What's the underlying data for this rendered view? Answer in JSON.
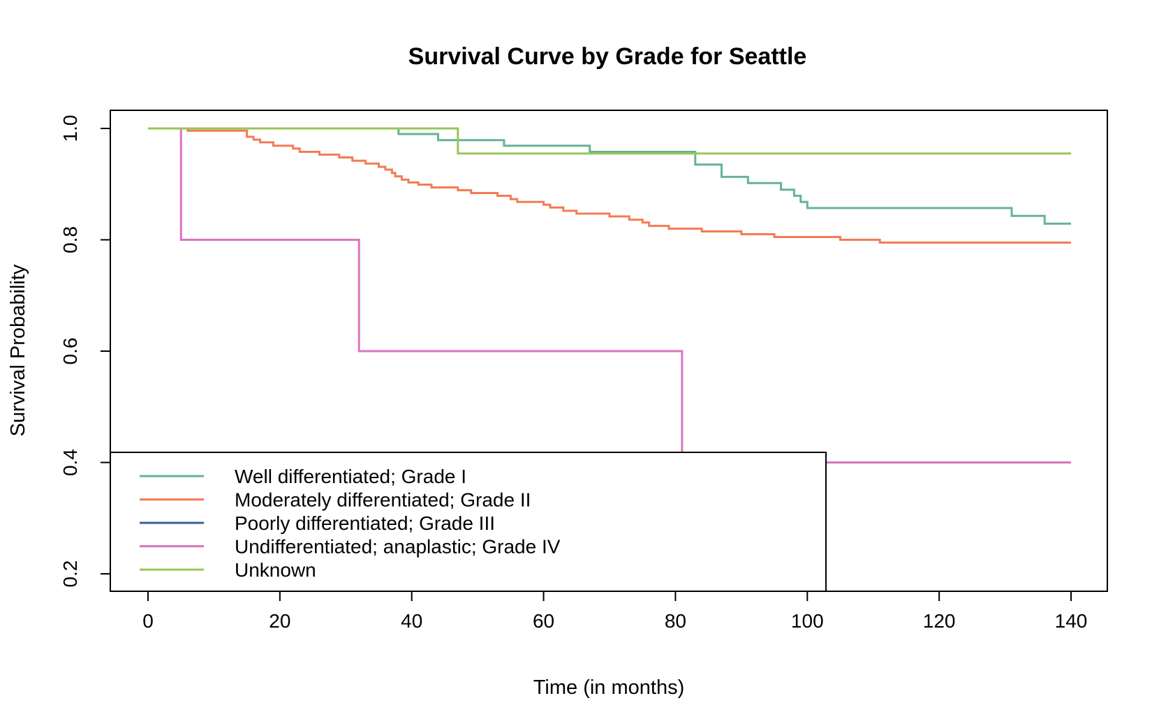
{
  "chart_data": {
    "type": "line",
    "step": true,
    "title": "Survival Curve by Grade for Seattle",
    "xlabel": "Time (in months)",
    "ylabel": "Survival Probability",
    "xlim": [
      0,
      140
    ],
    "ylim": [
      0.2,
      1.0
    ],
    "xticks": [
      0,
      20,
      40,
      60,
      80,
      100,
      120,
      140
    ],
    "xtick_labels": [
      "0",
      "20",
      "40",
      "60",
      "80",
      "100",
      "120",
      "140"
    ],
    "yticks": [
      0.2,
      0.4,
      0.6,
      0.8,
      1.0
    ],
    "ytick_labels": [
      "0.2",
      "0.4",
      "0.6",
      "0.8",
      "1.0"
    ],
    "grid": false,
    "legend_position": "bottom-left",
    "series": [
      {
        "name": "Well differentiated; Grade I",
        "color": "#66b493",
        "points": [
          [
            0,
            1.0
          ],
          [
            38,
            0.99
          ],
          [
            44,
            0.979
          ],
          [
            54,
            0.969
          ],
          [
            67,
            0.958
          ],
          [
            83,
            0.935
          ],
          [
            87,
            0.913
          ],
          [
            91,
            0.902
          ],
          [
            96,
            0.89
          ],
          [
            98,
            0.879
          ],
          [
            99,
            0.868
          ],
          [
            100,
            0.857
          ],
          [
            131,
            0.843
          ],
          [
            136,
            0.829
          ],
          [
            140,
            0.829
          ]
        ]
      },
      {
        "name": "Moderately differentiated; Grade II",
        "color": "#f37c54",
        "points": [
          [
            0,
            1.0
          ],
          [
            6,
            0.996
          ],
          [
            15,
            0.985
          ],
          [
            16,
            0.98
          ],
          [
            17,
            0.975
          ],
          [
            19,
            0.969
          ],
          [
            22,
            0.964
          ],
          [
            23,
            0.958
          ],
          [
            26,
            0.953
          ],
          [
            29,
            0.948
          ],
          [
            31,
            0.942
          ],
          [
            33,
            0.937
          ],
          [
            35,
            0.931
          ],
          [
            36,
            0.926
          ],
          [
            37,
            0.92
          ],
          [
            37.5,
            0.914
          ],
          [
            38.5,
            0.908
          ],
          [
            39.5,
            0.903
          ],
          [
            41,
            0.899
          ],
          [
            43,
            0.894
          ],
          [
            47,
            0.889
          ],
          [
            49,
            0.884
          ],
          [
            53,
            0.879
          ],
          [
            55,
            0.873
          ],
          [
            56,
            0.868
          ],
          [
            60,
            0.863
          ],
          [
            61,
            0.858
          ],
          [
            63,
            0.852
          ],
          [
            65,
            0.847
          ],
          [
            70,
            0.842
          ],
          [
            73,
            0.836
          ],
          [
            75,
            0.831
          ],
          [
            76,
            0.825
          ],
          [
            79,
            0.82
          ],
          [
            84,
            0.815
          ],
          [
            90,
            0.81
          ],
          [
            95,
            0.805
          ],
          [
            105,
            0.8
          ],
          [
            111,
            0.795
          ],
          [
            140,
            0.795
          ]
        ]
      },
      {
        "name": "Poorly differentiated; Grade III",
        "color": "#3b5f99",
        "points": [
          [
            0,
            1.0
          ],
          [
            27,
            1.0
          ]
        ]
      },
      {
        "name": "Undifferentiated; anaplastic; Grade IV",
        "color": "#d975bd",
        "points": [
          [
            0,
            1.0
          ],
          [
            5,
            0.8
          ],
          [
            32,
            0.6
          ],
          [
            81,
            0.4
          ],
          [
            140,
            0.4
          ]
        ]
      },
      {
        "name": "Unknown",
        "color": "#96c854",
        "points": [
          [
            0,
            1.0
          ],
          [
            47,
            0.955
          ],
          [
            140,
            0.955
          ]
        ]
      }
    ]
  }
}
